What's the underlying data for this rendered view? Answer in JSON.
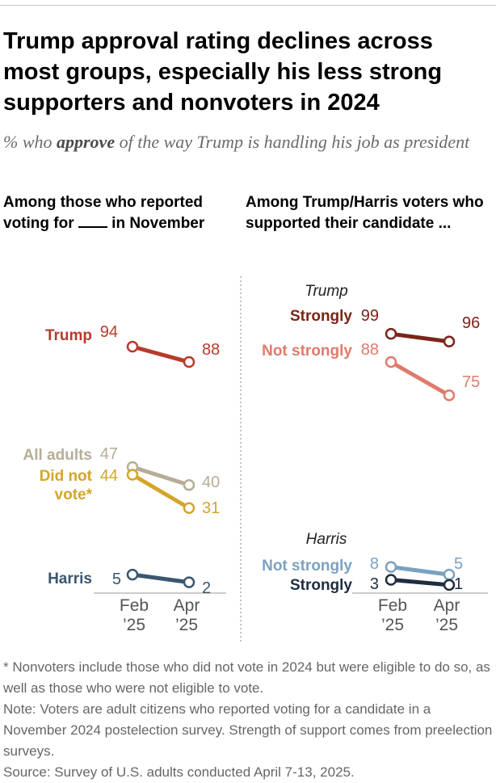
{
  "title": "Trump approval rating declines across most groups, especially his less strong supporters and nonvoters in 2024",
  "subtitle": {
    "pre": "% who ",
    "bold": "approve",
    "post": " of the way Trump is handling his job as president"
  },
  "panels": {
    "left_heading_pre": "Among those who reported voting for",
    "left_heading_post": "in November",
    "right_heading": "Among Trump/Harris voters who supported their candidate ..."
  },
  "notes": {
    "footnote": "* Nonvoters include those who did not vote in 2024 but were eligible to do so, as well as those who were not eligible to vote.",
    "note": "Note: Voters are adult citizens who reported voting for a candidate in a November 2024 postelection survey. Strength of support comes from preelection surveys.",
    "source": "Source: Survey of U.S. adults conducted April 7-13, 2025."
  },
  "colors": {
    "trump": "#b73a2c",
    "all_adults": "#b7ad97",
    "did_not_vote": "#d4a52a",
    "harris": "#3b566f",
    "strongly_trump": "#7b2418",
    "not_strongly_trump": "#e07a6c",
    "not_strongly_harris": "#7ba1c0",
    "strongly_harris": "#1e2e3f",
    "axis": "#999999",
    "tick_text": "#555555"
  },
  "chart_data": [
    {
      "type": "line",
      "panel": "left",
      "x": [
        "Feb '25",
        "Apr '25"
      ],
      "x_ticks": [
        [
          "Feb",
          "’25"
        ],
        [
          "Apr",
          "’25"
        ]
      ],
      "ylim": [
        0,
        100
      ],
      "grid": false,
      "series": [
        {
          "name": "Trump",
          "values": [
            94,
            88
          ],
          "color_key": "trump"
        },
        {
          "name": "All adults",
          "values": [
            47,
            40
          ],
          "color_key": "all_adults"
        },
        {
          "name": "Did not vote*",
          "values": [
            44,
            31
          ],
          "color_key": "did_not_vote"
        },
        {
          "name": "Harris",
          "values": [
            5,
            2
          ],
          "color_key": "harris"
        }
      ]
    },
    {
      "type": "line",
      "panel": "right",
      "x": [
        "Feb '25",
        "Apr '25"
      ],
      "x_ticks": [
        [
          "Feb",
          "’25"
        ],
        [
          "Apr",
          "’25"
        ]
      ],
      "ylim": [
        0,
        100
      ],
      "grid": false,
      "groups": [
        "Trump",
        "Harris"
      ],
      "series": [
        {
          "name": "Strongly",
          "group": "Trump",
          "values": [
            99,
            96
          ],
          "color_key": "strongly_trump"
        },
        {
          "name": "Not strongly",
          "group": "Trump",
          "values": [
            88,
            75
          ],
          "color_key": "not_strongly_trump"
        },
        {
          "name": "Not strongly",
          "group": "Harris",
          "values": [
            8,
            5
          ],
          "color_key": "not_strongly_harris"
        },
        {
          "name": "Strongly",
          "group": "Harris",
          "values": [
            3,
            1
          ],
          "color_key": "strongly_harris"
        }
      ]
    }
  ]
}
